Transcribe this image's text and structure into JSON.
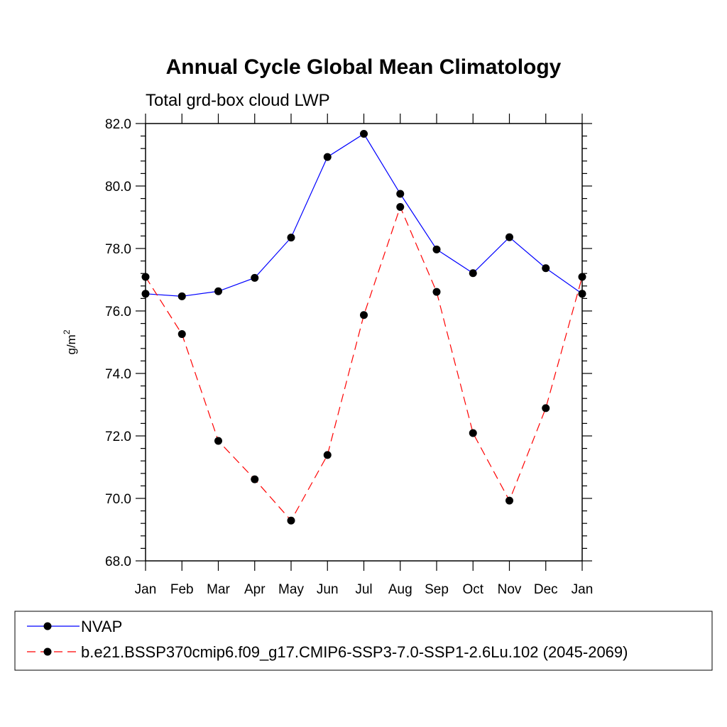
{
  "chart_data": {
    "type": "line",
    "title": "Annual Cycle Global Mean Climatology",
    "subtitle": "Total grd-box cloud LWP",
    "xlabel": "",
    "ylabel": "g/m",
    "ylabel_superscript": "2",
    "ylim": [
      68.0,
      82.0
    ],
    "yticks": [
      "68.0",
      "70.0",
      "72.0",
      "74.0",
      "76.0",
      "78.0",
      "80.0",
      "82.0"
    ],
    "categories": [
      "Jan",
      "Feb",
      "Mar",
      "Apr",
      "May",
      "Jun",
      "Jul",
      "Aug",
      "Sep",
      "Oct",
      "Nov",
      "Dec",
      "Jan"
    ],
    "series": [
      {
        "name": "NVAP",
        "color": "#0000ff",
        "dashed": false,
        "values": [
          76.55,
          76.47,
          76.63,
          77.06,
          78.35,
          80.93,
          81.67,
          79.75,
          77.97,
          77.21,
          78.36,
          77.37,
          76.55
        ]
      },
      {
        "name": "b.e21.BSSP370cmip6.f09_g17.CMIP6-SSP3-7.0-SSP1-2.6Lu.102 (2045-2069)",
        "color": "#ff0000",
        "dashed": true,
        "values": [
          77.09,
          75.26,
          71.84,
          70.61,
          69.29,
          71.39,
          75.87,
          79.33,
          76.61,
          72.09,
          69.93,
          72.89,
          77.09
        ]
      }
    ],
    "marker": "filled-circle",
    "grid": false,
    "legend_position": "bottom"
  }
}
